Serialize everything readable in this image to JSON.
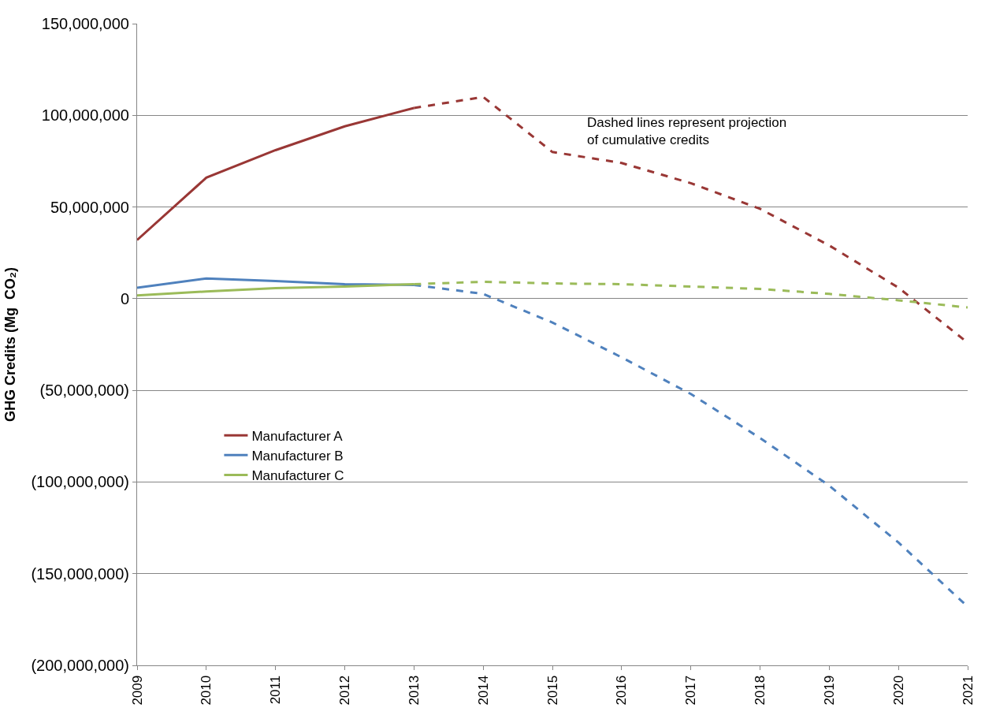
{
  "chart_data": {
    "type": "line",
    "ylabel": "GHG Credits (Mg  CO₂)",
    "xlim": [
      2009,
      2021
    ],
    "xticks": [
      2009,
      2010,
      2011,
      2012,
      2013,
      2014,
      2015,
      2016,
      2017,
      2018,
      2019,
      2020,
      2021
    ],
    "ylim": [
      -200000000,
      150000000
    ],
    "yticks": [
      {
        "value": 150000000,
        "label": "150,000,000"
      },
      {
        "value": 100000000,
        "label": "100,000,000"
      },
      {
        "value": 50000000,
        "label": "50,000,000"
      },
      0,
      {
        "value": -50000000,
        "label": "(50,000,000)"
      },
      {
        "value": -100000000,
        "label": "(100,000,000)"
      },
      {
        "value": -150000000,
        "label": "(150,000,000)"
      },
      {
        "value": -200000000,
        "label": "(200,000,000)"
      }
    ],
    "grid": "y",
    "legend": "left",
    "marker": "none",
    "annotations": [
      "Dashed lines represent projection\nof cumulative credits"
    ],
    "series": [
      {
        "name": "Manufacturer A",
        "color": "#993735",
        "line_style": "solid",
        "x": [
          2009,
          2010,
          2011,
          2012,
          2013
        ],
        "values": [
          32000000,
          66000000,
          81000000,
          94000000,
          104000000
        ]
      },
      {
        "name": "Manufacturer B",
        "color": "#4f81bd",
        "line_style": "solid",
        "x": [
          2009,
          2010,
          2011,
          2012,
          2013
        ],
        "values": [
          6000000,
          11000000,
          9600000,
          7900000,
          7500000
        ]
      },
      {
        "name": "Manufacturer C",
        "color": "#9bbb59",
        "line_style": "solid",
        "x": [
          2009,
          2010,
          2011,
          2012,
          2013
        ],
        "values": [
          1800000,
          3900000,
          5700000,
          6600000,
          7900000
        ]
      },
      {
        "color": "#993735",
        "line_style": "dashed",
        "x": [
          2013,
          2014,
          2015,
          2016,
          2017,
          2018,
          2019,
          2020,
          2021
        ],
        "values": [
          104000000,
          110000000,
          80000000,
          74000000,
          63000000,
          49000000,
          29000000,
          6000000,
          -24000000
        ]
      },
      {
        "color": "#4f81bd",
        "line_style": "dashed",
        "x": [
          2013,
          2014,
          2015,
          2016,
          2017,
          2018,
          2019,
          2020,
          2021
        ],
        "values": [
          7500000,
          2600000,
          -13000000,
          -32000000,
          -52000000,
          -76000000,
          -102000000,
          -133000000,
          -168000000
        ]
      },
      {
        "color": "#9bbb59",
        "line_style": "dashed",
        "x": [
          2013,
          2014,
          2015,
          2016,
          2017,
          2018,
          2019,
          2020,
          2021
        ],
        "values": [
          7900000,
          9200000,
          8300000,
          7900000,
          6600000,
          5300000,
          2600000,
          -900000,
          -4800000
        ]
      }
    ]
  }
}
